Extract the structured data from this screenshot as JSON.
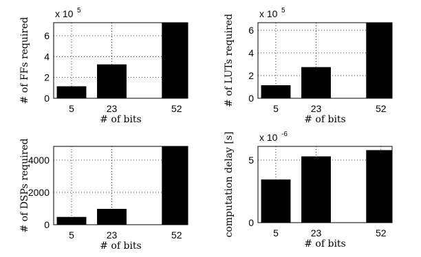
{
  "chart_data": [
    {
      "type": "bar",
      "ylabel": "# of FFs required",
      "xlabel": "# of bits",
      "y_multiplier": {
        "base": "x 10",
        "exponent": "5"
      },
      "x": [
        5,
        23,
        52
      ],
      "values": [
        1.15,
        3.25,
        7.25
      ],
      "color": "#000000",
      "xlim": [
        -3,
        57
      ],
      "xticks": [
        5,
        23,
        52
      ],
      "ylim": [
        0,
        7.25
      ],
      "yticks": [
        0,
        2,
        4,
        6
      ],
      "grid": true
    },
    {
      "type": "bar",
      "ylabel": "# of LUTs required",
      "xlabel": "# of bits",
      "y_multiplier": {
        "base": "x 10",
        "exponent": "5"
      },
      "x": [
        5,
        23,
        52
      ],
      "values": [
        1.15,
        2.75,
        6.67
      ],
      "color": "#000000",
      "xlim": [
        -3,
        57
      ],
      "xticks": [
        5,
        23,
        52
      ],
      "ylim": [
        0,
        6.67
      ],
      "yticks": [
        0,
        2,
        4,
        6
      ],
      "grid": true
    },
    {
      "type": "bar",
      "ylabel": "# of DSPs required",
      "xlabel": "# of bits",
      "x": [
        5,
        23,
        52
      ],
      "values": [
        480,
        980,
        4850
      ],
      "color": "#000000",
      "xlim": [
        -3,
        57
      ],
      "xticks": [
        5,
        23,
        52
      ],
      "ylim": [
        0,
        4850
      ],
      "yticks": [
        0,
        2000,
        4000
      ],
      "grid": true
    },
    {
      "type": "bar",
      "ylabel": "computation delay [s]",
      "xlabel": "# of bits",
      "y_multiplier": {
        "base": "x 10",
        "exponent": "-6"
      },
      "x": [
        5,
        23,
        52
      ],
      "values": [
        3.45,
        5.3,
        5.8
      ],
      "color": "#000000",
      "xlim": [
        -3,
        57
      ],
      "xticks": [
        5,
        23,
        52
      ],
      "ylim": [
        0,
        6.1
      ],
      "yticks": [
        0,
        5
      ],
      "grid": true
    }
  ]
}
